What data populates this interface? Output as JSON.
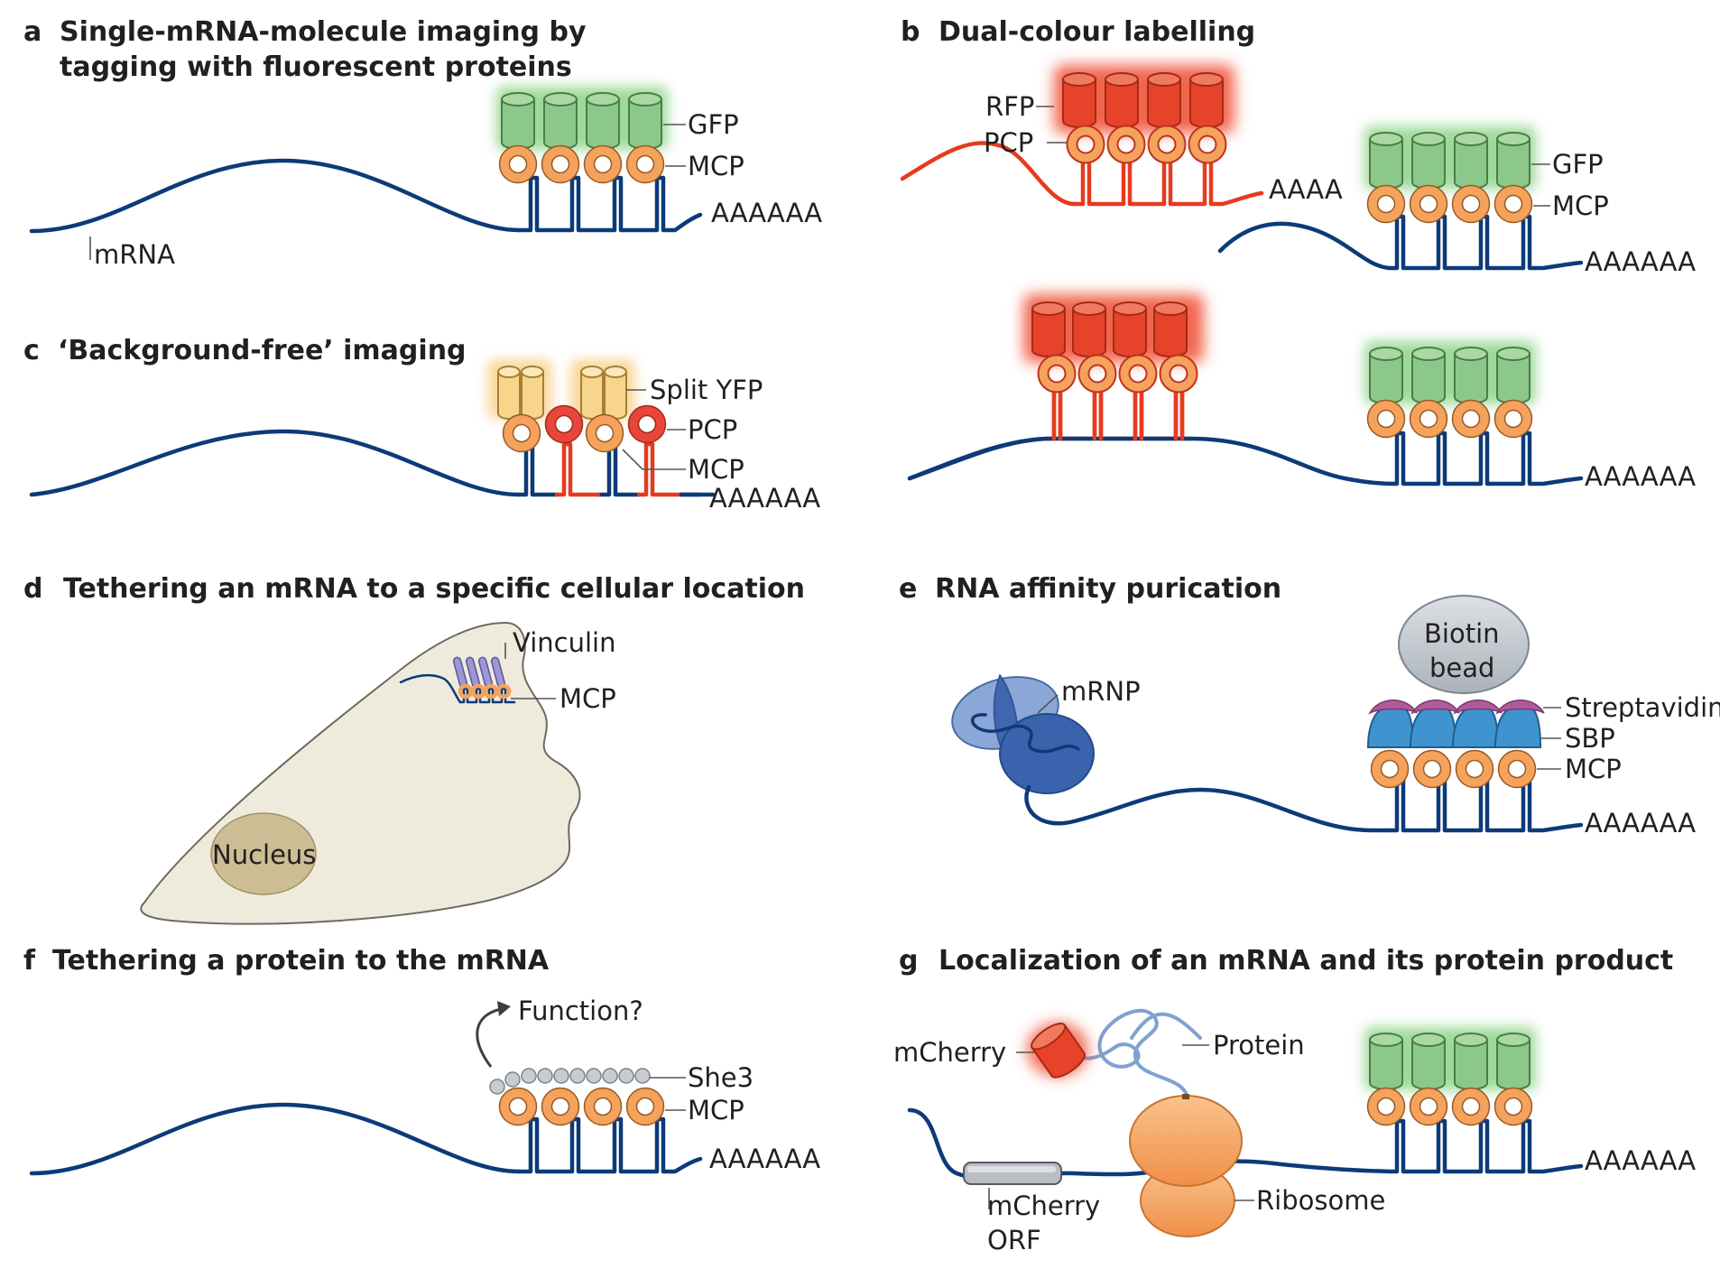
{
  "colors": {
    "mrna": "#0d3a78",
    "gfp": "#8cc88a",
    "rfp": "#e6432a",
    "mcp": "#f5a25c",
    "pcp": "#e8463a",
    "yfp": "#f7d58a",
    "sbp": "#3f93cf",
    "streptavidin": "#b05a9c",
    "bead": "#c7cdd3",
    "cell": "#efebdc",
    "nucleus": "#cdbd94",
    "ribosome": "#f5a25c"
  },
  "panels": {
    "a": {
      "letter": "a",
      "title_line1": "Single-mRNA-molecule imaging by",
      "title_line2": "tagging with fluorescent proteins",
      "labels": {
        "gfp": "GFP",
        "mcp": "MCP",
        "polya": "AAAAAA",
        "mrna": "mRNA"
      }
    },
    "b": {
      "letter": "b",
      "title": "Dual-colour labelling",
      "labels": {
        "rfp": "RFP",
        "pcp": "PCP",
        "polya_short": "AAAA",
        "gfp": "GFP",
        "mcp": "MCP",
        "polya1": "AAAAAA",
        "polya2": "AAAAAA"
      }
    },
    "c": {
      "letter": "c",
      "title": "‘Background-free’ imaging",
      "labels": {
        "split_yfp": "Split YFP",
        "pcp": "PCP",
        "mcp": "MCP",
        "polya": "AAAAAA"
      }
    },
    "d": {
      "letter": "d",
      "title": "Tethering an mRNA to a specific cellular location",
      "labels": {
        "vinculin": "Vinculin",
        "mcp": "MCP",
        "nucleus": "Nucleus"
      }
    },
    "e": {
      "letter": "e",
      "title": "RNA affinity purication",
      "labels": {
        "bead_line1": "Biotin",
        "bead_line2": "bead",
        "mrnp": "mRNP",
        "streptavidin": "Streptavidin",
        "sbp": "SBP",
        "mcp": "MCP",
        "polya": "AAAAAA"
      }
    },
    "f": {
      "letter": "f",
      "title": "Tethering a protein to the mRNA",
      "labels": {
        "function": "Function?",
        "she3": "She3",
        "mcp": "MCP",
        "polya": "AAAAAA"
      }
    },
    "g": {
      "letter": "g",
      "title": "Localization of an mRNA and its protein product",
      "labels": {
        "mcherry": "mCherry",
        "protein": "Protein",
        "orf_line1": "mCherry",
        "orf_line2": "ORF",
        "ribosome": "Ribosome",
        "polya": "AAAAAA"
      }
    }
  }
}
